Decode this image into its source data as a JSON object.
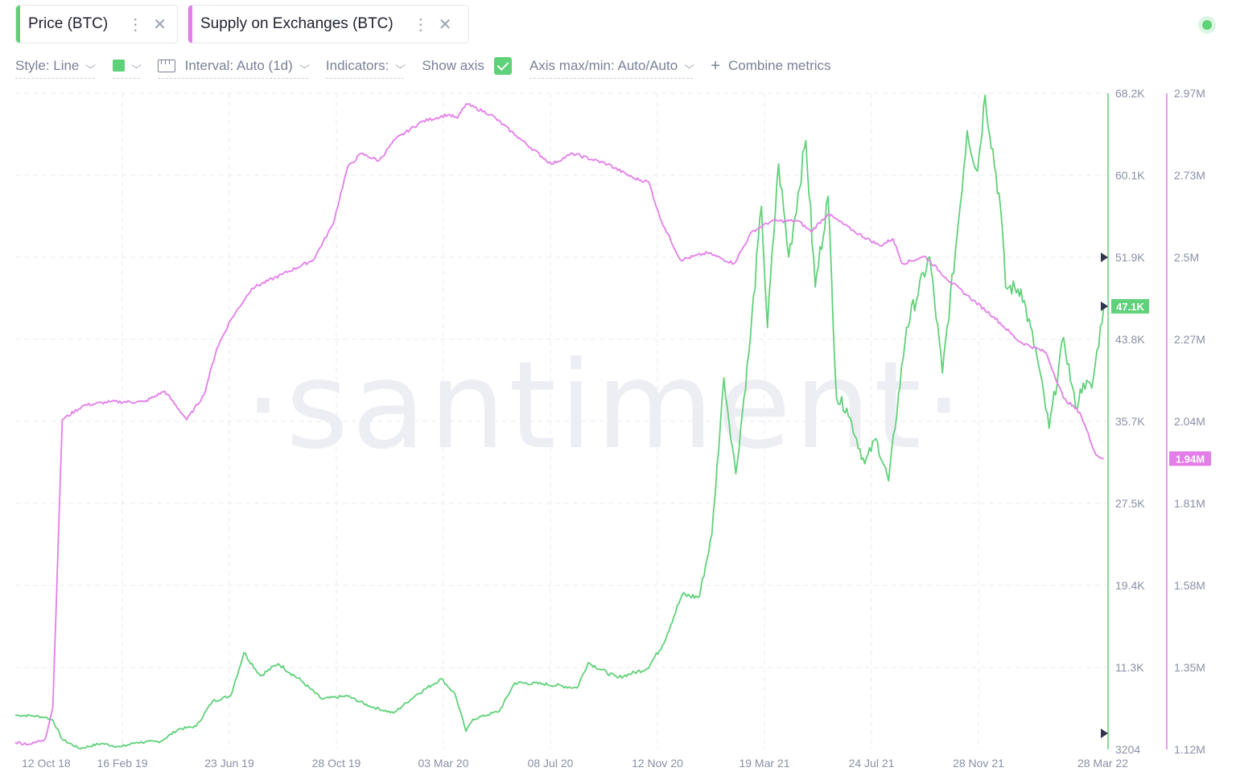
{
  "metrics": [
    {
      "label": "Price (BTC)",
      "color": "#5fd178"
    },
    {
      "label": "Supply on Exchanges (BTC)",
      "color": "#e37de8"
    }
  ],
  "toolbar": {
    "style": "Style: Line",
    "interval": "Interval: Auto (1d)",
    "indicators": "Indicators:",
    "show_axis": "Show axis",
    "axis_maxmin": "Axis max/min: Auto/Auto",
    "combine": "Combine metrics"
  },
  "watermark": "·santiment·",
  "icons": {
    "more": "kebab-icon",
    "close": "close-icon",
    "chevron": "chevron-down-icon",
    "interval": "ruler-icon",
    "plus": "plus-icon",
    "status": "status-dot-icon"
  },
  "chart_data": {
    "type": "line",
    "x_ticks": [
      "12 Oct 18",
      "16 Feb 19",
      "23 Jun 19",
      "28 Oct 19",
      "03 Mar 20",
      "08 Jul 20",
      "12 Nov 20",
      "19 Mar 21",
      "24 Jul 21",
      "28 Nov 21",
      "28 Mar 22"
    ],
    "x_range": [
      "2018-10-01",
      "2022-04-03"
    ],
    "grid": true,
    "series": [
      {
        "name": "Price (BTC)",
        "color": "#5fd178",
        "axis": "left",
        "axis_ticks": [
          "68.2K",
          "60.1K",
          "51.9K",
          "43.8K",
          "35.7K",
          "27.5K",
          "19.4K",
          "11.3K",
          "3204"
        ],
        "ylim": [
          3204,
          68200
        ],
        "last_value_label": "47.1K",
        "points": [
          [
            "2018-10-01",
            6600
          ],
          [
            "2018-10-20",
            6550
          ],
          [
            "2018-11-05",
            6400
          ],
          [
            "2018-11-14",
            6100
          ],
          [
            "2018-11-25",
            4200
          ],
          [
            "2018-12-15",
            3300
          ],
          [
            "2019-01-10",
            3800
          ],
          [
            "2019-02-01",
            3450
          ],
          [
            "2019-02-20",
            3900
          ],
          [
            "2019-03-20",
            4000
          ],
          [
            "2019-04-10",
            5200
          ],
          [
            "2019-05-01",
            5500
          ],
          [
            "2019-05-20",
            8000
          ],
          [
            "2019-06-10",
            8500
          ],
          [
            "2019-06-26",
            12800
          ],
          [
            "2019-07-15",
            10500
          ],
          [
            "2019-08-05",
            11700
          ],
          [
            "2019-09-01",
            10000
          ],
          [
            "2019-09-25",
            8200
          ],
          [
            "2019-10-25",
            8500
          ],
          [
            "2019-11-20",
            7500
          ],
          [
            "2019-12-18",
            6800
          ],
          [
            "2020-01-15",
            8700
          ],
          [
            "2020-02-12",
            10200
          ],
          [
            "2020-02-28",
            8700
          ],
          [
            "2020-03-12",
            5000
          ],
          [
            "2020-03-20",
            6200
          ],
          [
            "2020-04-20",
            7000
          ],
          [
            "2020-05-08",
            9800
          ],
          [
            "2020-06-10",
            9700
          ],
          [
            "2020-07-20",
            9300
          ],
          [
            "2020-08-02",
            11800
          ],
          [
            "2020-09-05",
            10300
          ],
          [
            "2020-10-10",
            11200
          ],
          [
            "2020-10-28",
            13500
          ],
          [
            "2020-11-20",
            18500
          ],
          [
            "2020-12-10",
            18300
          ],
          [
            "2020-12-25",
            24500
          ],
          [
            "2021-01-08",
            40000
          ],
          [
            "2021-01-22",
            30500
          ],
          [
            "2021-02-08",
            44000
          ],
          [
            "2021-02-21",
            57000
          ],
          [
            "2021-02-28",
            45000
          ],
          [
            "2021-03-13",
            61200
          ],
          [
            "2021-03-25",
            52000
          ],
          [
            "2021-04-14",
            63500
          ],
          [
            "2021-04-25",
            49000
          ],
          [
            "2021-05-10",
            58000
          ],
          [
            "2021-05-20",
            38000
          ],
          [
            "2021-06-01",
            37000
          ],
          [
            "2021-06-22",
            31500
          ],
          [
            "2021-07-05",
            34000
          ],
          [
            "2021-07-20",
            29800
          ],
          [
            "2021-08-10",
            45000
          ],
          [
            "2021-09-06",
            52000
          ],
          [
            "2021-09-21",
            40500
          ],
          [
            "2021-10-08",
            54000
          ],
          [
            "2021-10-20",
            64500
          ],
          [
            "2021-11-01",
            60500
          ],
          [
            "2021-11-10",
            68000
          ],
          [
            "2021-11-28",
            57000
          ],
          [
            "2021-12-04",
            49000
          ],
          [
            "2021-12-22",
            48800
          ],
          [
            "2022-01-10",
            42000
          ],
          [
            "2022-01-24",
            35000
          ],
          [
            "2022-02-10",
            44000
          ],
          [
            "2022-02-24",
            37000
          ],
          [
            "2022-03-05",
            39500
          ],
          [
            "2022-03-15",
            39000
          ],
          [
            "2022-03-29",
            47100
          ]
        ]
      },
      {
        "name": "Supply on Exchanges (BTC)",
        "color": "#e37de8",
        "axis": "right",
        "axis_ticks": [
          "2.97M",
          "2.73M",
          "2.5M",
          "2.27M",
          "2.04M",
          "1.81M",
          "1.58M",
          "1.35M",
          "1.12M"
        ],
        "ylim": [
          1120000,
          2970000
        ],
        "last_value_label": "1.94M",
        "points": [
          [
            "2018-10-01",
            1140000
          ],
          [
            "2018-10-20",
            1135000
          ],
          [
            "2018-11-05",
            1150000
          ],
          [
            "2018-11-14",
            1240000
          ],
          [
            "2018-11-25",
            2050000
          ],
          [
            "2018-12-20",
            2090000
          ],
          [
            "2019-01-20",
            2100000
          ],
          [
            "2019-03-01",
            2100000
          ],
          [
            "2019-03-25",
            2130000
          ],
          [
            "2019-04-20",
            2050000
          ],
          [
            "2019-05-10",
            2120000
          ],
          [
            "2019-05-25",
            2250000
          ],
          [
            "2019-06-10",
            2330000
          ],
          [
            "2019-07-05",
            2420000
          ],
          [
            "2019-08-10",
            2460000
          ],
          [
            "2019-09-15",
            2500000
          ],
          [
            "2019-10-08",
            2600000
          ],
          [
            "2019-10-25",
            2760000
          ],
          [
            "2019-11-10",
            2800000
          ],
          [
            "2019-12-01",
            2780000
          ],
          [
            "2019-12-20",
            2840000
          ],
          [
            "2020-01-20",
            2890000
          ],
          [
            "2020-02-20",
            2910000
          ],
          [
            "2020-03-02",
            2900000
          ],
          [
            "2020-03-12",
            2940000
          ],
          [
            "2020-04-10",
            2910000
          ],
          [
            "2020-05-10",
            2850000
          ],
          [
            "2020-06-20",
            2770000
          ],
          [
            "2020-07-15",
            2800000
          ],
          [
            "2020-08-25",
            2770000
          ],
          [
            "2020-09-25",
            2730000
          ],
          [
            "2020-10-12",
            2720000
          ],
          [
            "2020-10-25",
            2620000
          ],
          [
            "2020-11-18",
            2500000
          ],
          [
            "2020-12-20",
            2520000
          ],
          [
            "2021-01-20",
            2490000
          ],
          [
            "2021-02-10",
            2580000
          ],
          [
            "2021-03-05",
            2610000
          ],
          [
            "2021-04-05",
            2610000
          ],
          [
            "2021-04-20",
            2580000
          ],
          [
            "2021-05-10",
            2630000
          ],
          [
            "2021-06-10",
            2580000
          ],
          [
            "2021-07-10",
            2540000
          ],
          [
            "2021-07-25",
            2560000
          ],
          [
            "2021-08-05",
            2490000
          ],
          [
            "2021-09-01",
            2510000
          ],
          [
            "2021-09-25",
            2450000
          ],
          [
            "2021-10-20",
            2400000
          ],
          [
            "2021-11-20",
            2340000
          ],
          [
            "2021-12-20",
            2270000
          ],
          [
            "2022-01-20",
            2240000
          ],
          [
            "2022-02-10",
            2110000
          ],
          [
            "2022-03-01",
            2070000
          ],
          [
            "2022-03-20",
            1950000
          ],
          [
            "2022-03-29",
            1940000
          ]
        ]
      }
    ]
  }
}
